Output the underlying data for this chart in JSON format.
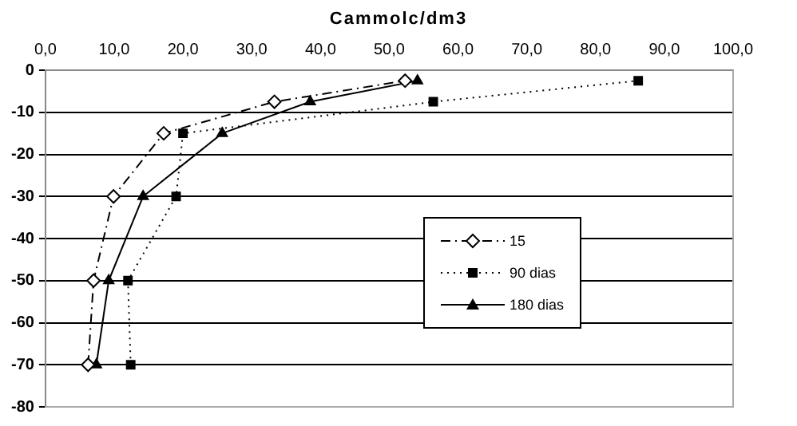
{
  "chart_data": {
    "type": "line",
    "title": "Cammolc/dm3",
    "xlim": [
      0,
      100
    ],
    "xticks": [
      {
        "value": 0,
        "label": "0,0"
      },
      {
        "value": 10,
        "label": "10,0"
      },
      {
        "value": 20,
        "label": "20,0"
      },
      {
        "value": 30,
        "label": "30,0"
      },
      {
        "value": 40,
        "label": "40,0"
      },
      {
        "value": 50,
        "label": "50,0"
      },
      {
        "value": 60,
        "label": "60,0"
      },
      {
        "value": 70,
        "label": "70,0"
      },
      {
        "value": 80,
        "label": "80,0"
      },
      {
        "value": 90,
        "label": "90,0"
      },
      {
        "value": 100,
        "label": "100,0"
      }
    ],
    "ylim": [
      -80,
      0
    ],
    "yticks": [
      -80,
      -70,
      -60,
      -50,
      -40,
      -30,
      -20,
      -10,
      0
    ],
    "grid": "y",
    "legend": "right",
    "series": [
      {
        "name": "15",
        "color": "#000000",
        "marker": "diamond",
        "line_style": "dashdot",
        "x": [
          6.2,
          7.0,
          9.9,
          17.2,
          33.3,
          52.3
        ],
        "values": [
          -70,
          -50,
          -30,
          -15,
          -7.5,
          -2.5
        ]
      },
      {
        "name": "90 dias",
        "color": "#000000",
        "marker": "square",
        "line_style": "dotted",
        "x": [
          12.4,
          12.0,
          19.0,
          20.0,
          56.4,
          86.2
        ],
        "values": [
          -70,
          -50,
          -30,
          -15,
          -7.5,
          -2.5
        ]
      },
      {
        "name": "180 dias",
        "color": "#000000",
        "marker": "triangle",
        "line_style": "solid",
        "x": [
          7.4,
          9.2,
          14.2,
          25.7,
          38.5,
          54.1
        ],
        "values": [
          -70,
          -50,
          -30,
          -15,
          -7.5,
          -2.5
        ]
      }
    ]
  }
}
